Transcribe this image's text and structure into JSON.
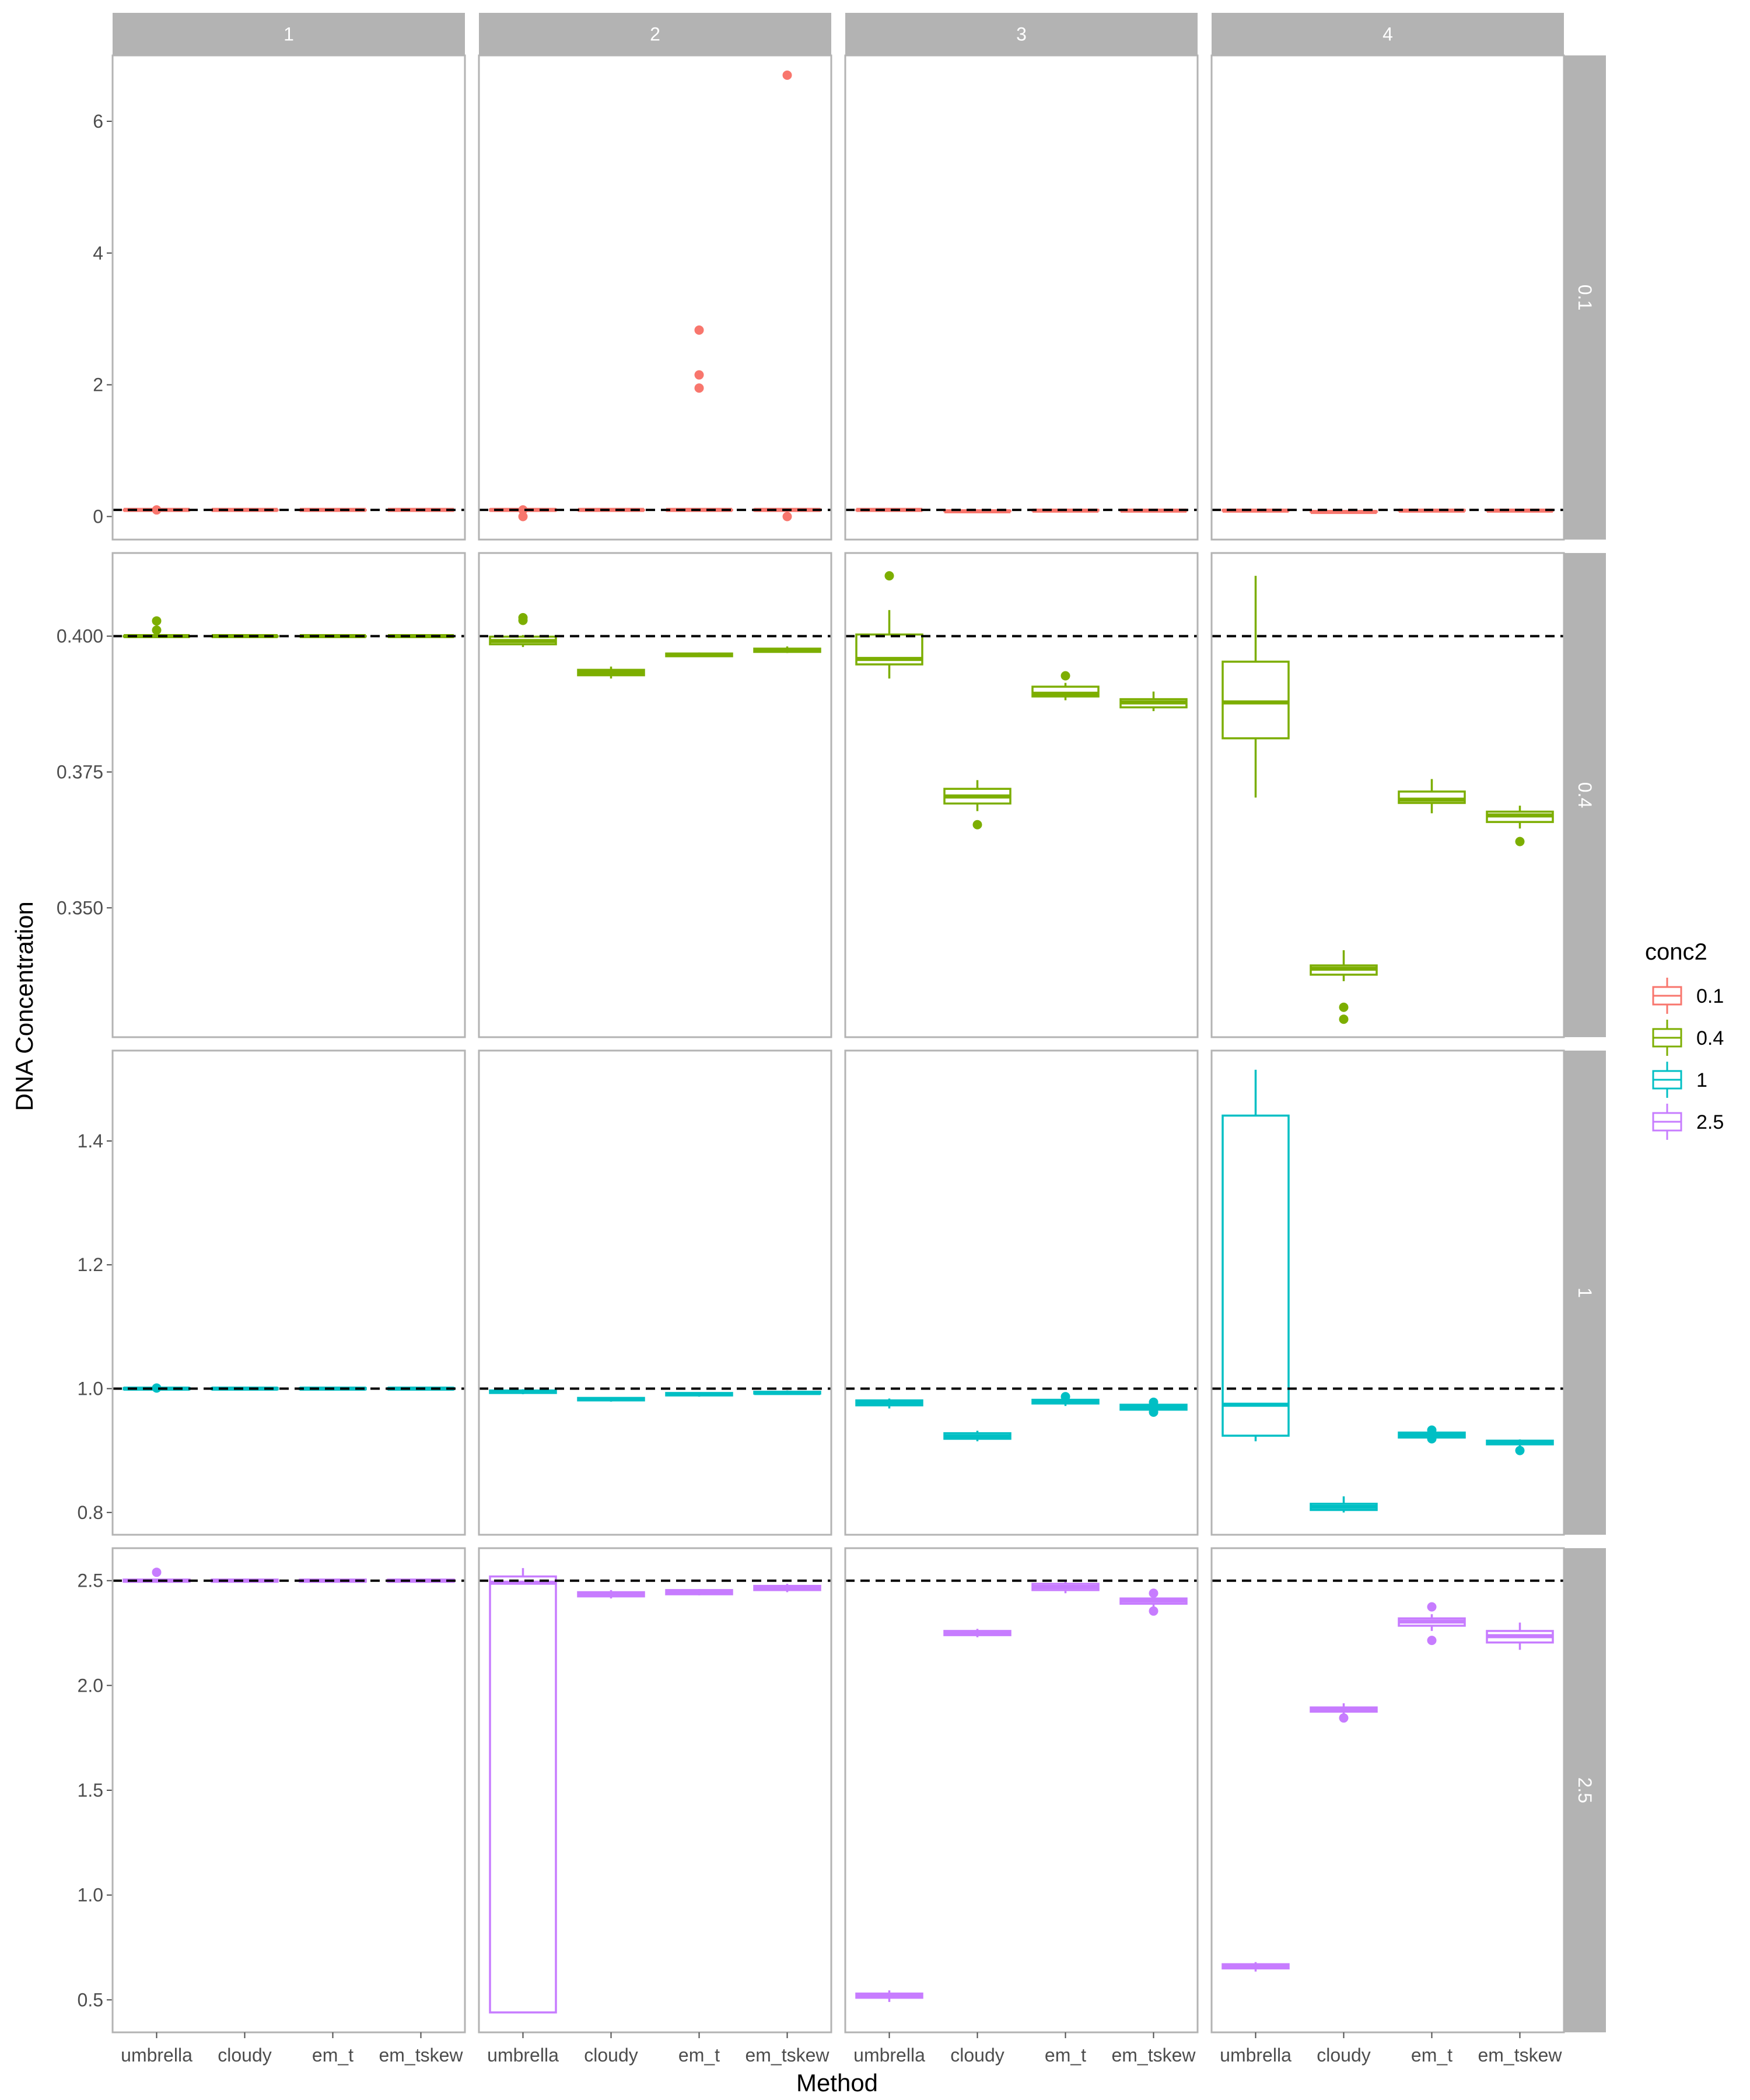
{
  "chart_data": {
    "type": "boxplot",
    "xlabel": "Method",
    "ylabel": "DNA Concentration",
    "categories": [
      "umbrella",
      "cloudy",
      "em_t",
      "em_tskew"
    ],
    "col_facets": [
      "1",
      "2",
      "3",
      "4"
    ],
    "row_facets": [
      "0.1",
      "0.4",
      "1",
      "2.5"
    ],
    "legend": {
      "title": "conc2",
      "placement": "right",
      "entries": [
        {
          "label": "0.1",
          "color": "#F8766D"
        },
        {
          "label": "0.4",
          "color": "#7CAE00"
        },
        {
          "label": "1",
          "color": "#00BFC4"
        },
        {
          "label": "2.5",
          "color": "#C77CFF"
        }
      ]
    },
    "rows": [
      {
        "facet": "0.1",
        "color": "#F8766D",
        "reference": 0.1,
        "ylim": [
          -0.35,
          7.0
        ],
        "yticks": [
          0,
          2,
          4,
          6
        ],
        "ytick_labels": [
          "0",
          "2",
          "4",
          "6"
        ],
        "panels": [
          [
            {
              "q1": 0.1,
              "med": 0.1,
              "q3": 0.1,
              "lo": 0.1,
              "hi": 0.1,
              "out": [
                0.1
              ]
            },
            {
              "q1": 0.1,
              "med": 0.1,
              "q3": 0.1,
              "lo": 0.1,
              "hi": 0.1,
              "out": []
            },
            {
              "q1": 0.1,
              "med": 0.1,
              "q3": 0.1,
              "lo": 0.1,
              "hi": 0.1,
              "out": []
            },
            {
              "q1": 0.1,
              "med": 0.1,
              "q3": 0.1,
              "lo": 0.1,
              "hi": 0.1,
              "out": []
            }
          ],
          [
            {
              "q1": 0.09,
              "med": 0.1,
              "q3": 0.11,
              "lo": 0.08,
              "hi": 0.12,
              "out": [
                0.0,
                0.1
              ]
            },
            {
              "q1": 0.1,
              "med": 0.1,
              "q3": 0.1,
              "lo": 0.1,
              "hi": 0.1,
              "out": []
            },
            {
              "q1": 0.1,
              "med": 0.1,
              "q3": 0.1,
              "lo": 0.1,
              "hi": 0.1,
              "out": [
                1.95,
                2.15,
                2.83
              ]
            },
            {
              "q1": 0.09,
              "med": 0.1,
              "q3": 0.11,
              "lo": 0.08,
              "hi": 0.12,
              "out": [
                0.0,
                6.7
              ]
            }
          ],
          [
            {
              "q1": 0.1,
              "med": 0.1,
              "q3": 0.1,
              "lo": 0.1,
              "hi": 0.1,
              "out": []
            },
            {
              "q1": 0.08,
              "med": 0.08,
              "q3": 0.09,
              "lo": 0.08,
              "hi": 0.09,
              "out": []
            },
            {
              "q1": 0.09,
              "med": 0.09,
              "q3": 0.1,
              "lo": 0.09,
              "hi": 0.1,
              "out": []
            },
            {
              "q1": 0.09,
              "med": 0.09,
              "q3": 0.1,
              "lo": 0.09,
              "hi": 0.1,
              "out": []
            }
          ],
          [
            {
              "q1": 0.09,
              "med": 0.09,
              "q3": 0.1,
              "lo": 0.09,
              "hi": 0.1,
              "out": []
            },
            {
              "q1": 0.07,
              "med": 0.07,
              "q3": 0.08,
              "lo": 0.07,
              "hi": 0.08,
              "out": []
            },
            {
              "q1": 0.09,
              "med": 0.09,
              "q3": 0.1,
              "lo": 0.09,
              "hi": 0.1,
              "out": []
            },
            {
              "q1": 0.09,
              "med": 0.09,
              "q3": 0.1,
              "lo": 0.09,
              "hi": 0.1,
              "out": []
            }
          ]
        ]
      },
      {
        "facet": "0.4",
        "color": "#7CAE00",
        "reference": 0.4,
        "ylim": [
          0.3262,
          0.4153
        ],
        "yticks": [
          0.35,
          0.375,
          0.4
        ],
        "ytick_labels": [
          "0.350",
          "0.375",
          "0.400"
        ],
        "panels": [
          [
            {
              "q1": 0.4,
              "med": 0.4,
              "q3": 0.4,
              "lo": 0.4,
              "hi": 0.4,
              "out": [
                0.4028,
                0.4011
              ]
            },
            {
              "q1": 0.4,
              "med": 0.4,
              "q3": 0.4,
              "lo": 0.4,
              "hi": 0.4,
              "out": []
            },
            {
              "q1": 0.4,
              "med": 0.4,
              "q3": 0.4,
              "lo": 0.4,
              "hi": 0.4,
              "out": []
            },
            {
              "q1": 0.4,
              "med": 0.4,
              "q3": 0.4,
              "lo": 0.4,
              "hi": 0.4,
              "out": []
            }
          ],
          [
            {
              "q1": 0.3985,
              "med": 0.3991,
              "q3": 0.3999,
              "lo": 0.398,
              "hi": 0.4002,
              "out": [
                0.4029,
                0.4034
              ]
            },
            {
              "q1": 0.3928,
              "med": 0.3933,
              "q3": 0.3938,
              "lo": 0.3922,
              "hi": 0.3944,
              "out": []
            },
            {
              "q1": 0.3963,
              "med": 0.3966,
              "q3": 0.3968,
              "lo": 0.3962,
              "hi": 0.397,
              "out": []
            },
            {
              "q1": 0.3971,
              "med": 0.3974,
              "q3": 0.3977,
              "lo": 0.3969,
              "hi": 0.3981,
              "out": []
            }
          ],
          [
            {
              "q1": 0.3948,
              "med": 0.3958,
              "q3": 0.4003,
              "lo": 0.3922,
              "hi": 0.4048,
              "out": [
                0.4111
              ]
            },
            {
              "q1": 0.3692,
              "med": 0.3705,
              "q3": 0.3719,
              "lo": 0.3678,
              "hi": 0.3735,
              "out": [
                0.3653
              ]
            },
            {
              "q1": 0.3889,
              "med": 0.3894,
              "q3": 0.3907,
              "lo": 0.3882,
              "hi": 0.3914,
              "out": [
                0.3927
              ]
            },
            {
              "q1": 0.3869,
              "med": 0.3878,
              "q3": 0.3884,
              "lo": 0.3862,
              "hi": 0.3898,
              "out": []
            }
          ],
          [
            {
              "q1": 0.3812,
              "med": 0.3878,
              "q3": 0.3953,
              "lo": 0.3703,
              "hi": 0.4111,
              "out": []
            },
            {
              "q1": 0.3377,
              "med": 0.3388,
              "q3": 0.3394,
              "lo": 0.3365,
              "hi": 0.3422,
              "out": [
                0.3317,
                0.3295
              ]
            },
            {
              "q1": 0.3693,
              "med": 0.3699,
              "q3": 0.3714,
              "lo": 0.3674,
              "hi": 0.3737,
              "out": []
            },
            {
              "q1": 0.3658,
              "med": 0.367,
              "q3": 0.3677,
              "lo": 0.3646,
              "hi": 0.3688,
              "out": [
                0.3622
              ]
            }
          ]
        ]
      },
      {
        "facet": "1",
        "color": "#00BFC4",
        "reference": 1.0,
        "ylim": [
          0.764,
          1.546
        ],
        "yticks": [
          0.8,
          1.0,
          1.2,
          1.4
        ],
        "ytick_labels": [
          "0.8",
          "1.0",
          "1.2",
          "1.4"
        ],
        "panels": [
          [
            {
              "q1": 0.999,
              "med": 1.0,
              "q3": 1.001,
              "lo": 0.998,
              "hi": 1.002,
              "out": [
                1.001
              ]
            },
            {
              "q1": 0.999,
              "med": 1.0,
              "q3": 1.001,
              "lo": 0.998,
              "hi": 1.002,
              "out": []
            },
            {
              "q1": 0.999,
              "med": 1.0,
              "q3": 1.001,
              "lo": 0.998,
              "hi": 1.002,
              "out": []
            },
            {
              "q1": 0.999,
              "med": 1.0,
              "q3": 1.001,
              "lo": 0.998,
              "hi": 1.002,
              "out": []
            }
          ],
          [
            {
              "q1": 0.993,
              "med": 0.995,
              "q3": 0.997,
              "lo": 0.991,
              "hi": 0.999,
              "out": []
            },
            {
              "q1": 0.981,
              "med": 0.983,
              "q3": 0.985,
              "lo": 0.979,
              "hi": 0.986,
              "out": []
            },
            {
              "q1": 0.989,
              "med": 0.991,
              "q3": 0.993,
              "lo": 0.987,
              "hi": 0.994,
              "out": []
            },
            {
              "q1": 0.992,
              "med": 0.993,
              "q3": 0.995,
              "lo": 0.99,
              "hi": 0.997,
              "out": []
            }
          ],
          [
            {
              "q1": 0.973,
              "med": 0.977,
              "q3": 0.981,
              "lo": 0.968,
              "hi": 0.984,
              "out": []
            },
            {
              "q1": 0.919,
              "med": 0.923,
              "q3": 0.928,
              "lo": 0.915,
              "hi": 0.932,
              "out": []
            },
            {
              "q1": 0.976,
              "med": 0.979,
              "q3": 0.982,
              "lo": 0.972,
              "hi": 0.985,
              "out": [
                0.987
              ]
            },
            {
              "q1": 0.966,
              "med": 0.97,
              "q3": 0.974,
              "lo": 0.962,
              "hi": 0.978,
              "out": [
                0.962,
                0.967,
                0.978
              ]
            }
          ],
          [
            {
              "q1": 0.924,
              "med": 0.974,
              "q3": 1.441,
              "lo": 0.915,
              "hi": 1.515,
              "out": []
            },
            {
              "q1": 0.804,
              "med": 0.809,
              "q3": 0.814,
              "lo": 0.8,
              "hi": 0.826,
              "out": []
            },
            {
              "q1": 0.921,
              "med": 0.925,
              "q3": 0.929,
              "lo": 0.917,
              "hi": 0.933,
              "out": [
                0.919,
                0.928,
                0.933
              ]
            },
            {
              "q1": 0.91,
              "med": 0.913,
              "q3": 0.916,
              "lo": 0.907,
              "hi": 0.918,
              "out": [
                0.9
              ]
            }
          ]
        ]
      },
      {
        "facet": "2.5",
        "color": "#C77CFF",
        "reference": 2.5,
        "ylim": [
          0.345,
          2.655
        ],
        "yticks": [
          0.5,
          1.0,
          1.5,
          2.0,
          2.5
        ],
        "ytick_labels": [
          "0.5",
          "1.0",
          "1.5",
          "2.0",
          "2.5"
        ],
        "panels": [
          [
            {
              "q1": 2.495,
              "med": 2.5,
              "q3": 2.505,
              "lo": 2.49,
              "hi": 2.51,
              "out": [
                2.54
              ]
            },
            {
              "q1": 2.495,
              "med": 2.5,
              "q3": 2.505,
              "lo": 2.49,
              "hi": 2.51,
              "out": []
            },
            {
              "q1": 2.495,
              "med": 2.5,
              "q3": 2.505,
              "lo": 2.49,
              "hi": 2.51,
              "out": []
            },
            {
              "q1": 2.495,
              "med": 2.5,
              "q3": 2.505,
              "lo": 2.49,
              "hi": 2.51,
              "out": []
            }
          ],
          [
            {
              "q1": 0.44,
              "med": 2.49,
              "q3": 2.52,
              "lo": 0.44,
              "hi": 2.56,
              "out": []
            },
            {
              "q1": 2.425,
              "med": 2.435,
              "q3": 2.445,
              "lo": 2.415,
              "hi": 2.455,
              "out": []
            },
            {
              "q1": 2.435,
              "med": 2.445,
              "q3": 2.455,
              "lo": 2.43,
              "hi": 2.46,
              "out": []
            },
            {
              "q1": 2.455,
              "med": 2.465,
              "q3": 2.475,
              "lo": 2.445,
              "hi": 2.485,
              "out": []
            }
          ],
          [
            {
              "q1": 0.51,
              "med": 0.52,
              "q3": 0.53,
              "lo": 0.49,
              "hi": 0.545,
              "out": []
            },
            {
              "q1": 2.24,
              "med": 2.25,
              "q3": 2.26,
              "lo": 2.23,
              "hi": 2.27,
              "out": []
            },
            {
              "q1": 2.455,
              "med": 2.47,
              "q3": 2.485,
              "lo": 2.44,
              "hi": 2.495,
              "out": []
            },
            {
              "q1": 2.39,
              "med": 2.405,
              "q3": 2.415,
              "lo": 2.37,
              "hi": 2.43,
              "out": [
                2.355,
                2.44
              ]
            }
          ],
          [
            {
              "q1": 0.65,
              "med": 0.66,
              "q3": 0.67,
              "lo": 0.635,
              "hi": 0.68,
              "out": []
            },
            {
              "q1": 1.875,
              "med": 1.885,
              "q3": 1.895,
              "lo": 1.86,
              "hi": 1.915,
              "out": [
                1.845
              ]
            },
            {
              "q1": 2.285,
              "med": 2.305,
              "q3": 2.32,
              "lo": 2.26,
              "hi": 2.34,
              "out": [
                2.215,
                2.375
              ]
            },
            {
              "q1": 2.205,
              "med": 2.235,
              "q3": 2.26,
              "lo": 2.17,
              "hi": 2.3,
              "out": []
            }
          ]
        ]
      }
    ]
  }
}
